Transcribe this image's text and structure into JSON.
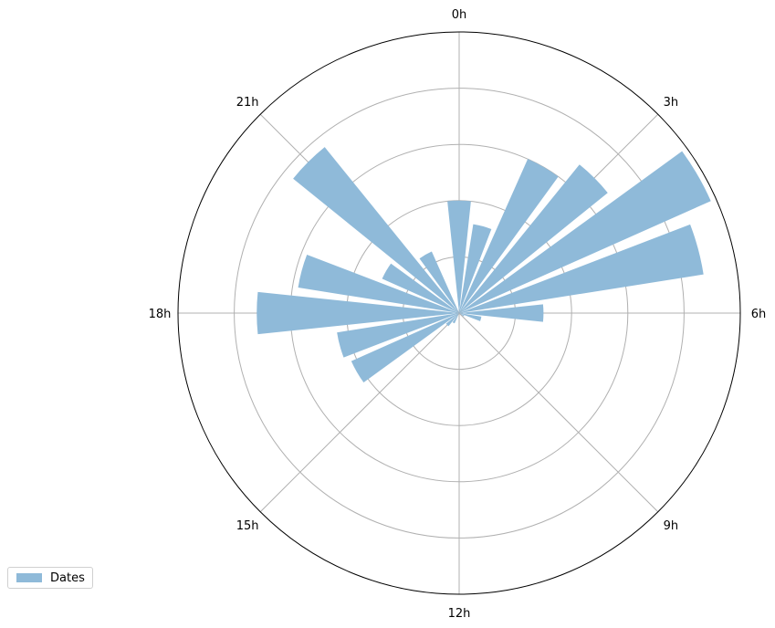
{
  "chart_data": {
    "type": "bar",
    "projection": "polar",
    "theta_direction": "clockwise",
    "theta_zero": "top",
    "angular_ticks": [
      "0h",
      "3h",
      "6h",
      "9h",
      "12h",
      "15h",
      "18h",
      "21h"
    ],
    "radial_range": [
      0,
      5
    ],
    "radial_gridlines": [
      1,
      2,
      3,
      4,
      5
    ],
    "radial_tick_labels_shown": false,
    "grid": true,
    "legend_position": "lower-left",
    "series": [
      {
        "name": "Dates",
        "color": "#8fbad9",
        "hours": [
          0,
          1,
          2,
          3,
          4,
          5,
          6,
          7,
          8,
          9,
          10,
          11,
          12,
          13,
          14,
          15,
          16,
          17,
          18,
          19,
          20,
          21,
          22,
          23
        ],
        "values": [
          2.0,
          1.6,
          3.0,
          3.4,
          4.9,
          4.4,
          1.5,
          0.4,
          0.1,
          0.0,
          0.0,
          0.0,
          0.0,
          0.0,
          0.2,
          0.3,
          2.1,
          2.2,
          3.6,
          2.9,
          1.5,
          3.8,
          1.2,
          0.0
        ]
      }
    ]
  }
}
